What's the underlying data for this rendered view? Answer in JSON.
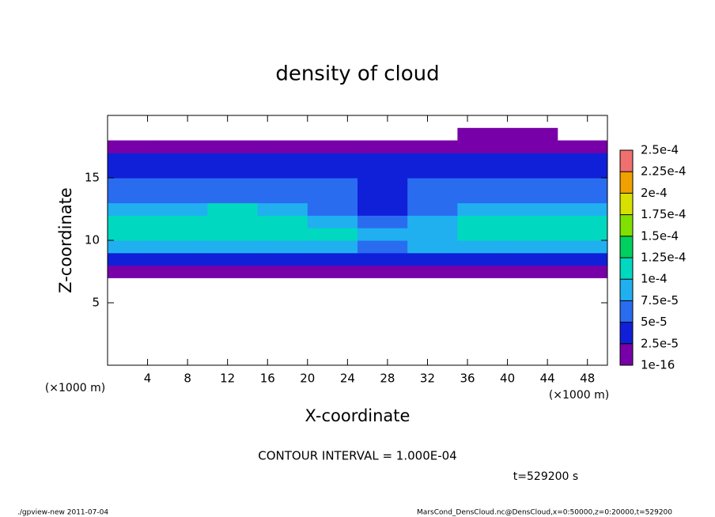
{
  "chart_data": {
    "type": "heatmap",
    "title": "density of cloud",
    "xlabel": "X-coordinate",
    "ylabel": "Z-coordinate",
    "x_unit": "(×1000 m)",
    "y_unit": "(×1000 m)",
    "contour_note": "CONTOUR INTERVAL = 1.000E-04",
    "time_note": "t=529200 s",
    "footer_left": "./gpview-new  2011-07-04",
    "footer_right": "MarsCond_DensCloud.nc@DensCloud,x=0:50000,z=0:20000,t=529200",
    "xlim": [
      0,
      50
    ],
    "ylim": [
      0,
      20
    ],
    "xticks": [
      4,
      8,
      12,
      16,
      20,
      24,
      28,
      32,
      36,
      40,
      44,
      48
    ],
    "yticks": [
      5,
      10,
      15
    ],
    "x_edges": [
      0,
      5,
      10,
      15,
      20,
      25,
      30,
      35,
      40,
      45,
      50
    ],
    "z_edges": [
      7,
      8,
      9,
      10,
      11,
      12,
      13,
      14,
      15,
      16,
      17,
      18,
      19
    ],
    "values": [
      [
        1e-05,
        1e-05,
        1e-05,
        1e-05,
        1e-05,
        1e-05,
        1e-05,
        1e-05,
        1e-05,
        1e-05
      ],
      [
        3e-05,
        3e-05,
        3e-05,
        3e-05,
        3e-05,
        3e-05,
        3e-05,
        3e-05,
        3e-05,
        3e-05
      ],
      [
        8e-05,
        8e-05,
        8e-05,
        8e-05,
        8e-05,
        7e-05,
        8e-05,
        8e-05,
        8e-05,
        8e-05
      ],
      [
        0.00011,
        0.00011,
        0.00011,
        0.00011,
        0.0001,
        8e-05,
        9e-05,
        0.00011,
        0.00011,
        0.00011
      ],
      [
        0.00011,
        0.00012,
        0.00012,
        0.00011,
        9e-05,
        6e-05,
        9e-05,
        0.00011,
        0.00012,
        0.00011
      ],
      [
        8e-05,
        9e-05,
        0.0001,
        9e-05,
        7e-05,
        4e-05,
        7e-05,
        9e-05,
        9e-05,
        8e-05
      ],
      [
        6e-05,
        6e-05,
        7e-05,
        7e-05,
        6e-05,
        4e-05,
        5e-05,
        6e-05,
        6e-05,
        6e-05
      ],
      [
        5e-05,
        5e-05,
        5e-05,
        5e-05,
        5e-05,
        4e-05,
        5e-05,
        5e-05,
        5e-05,
        5e-05
      ],
      [
        4e-05,
        4e-05,
        4e-05,
        4e-05,
        4e-05,
        4e-05,
        4e-05,
        4e-05,
        4e-05,
        4e-05
      ],
      [
        3e-05,
        3e-05,
        3e-05,
        3e-05,
        3e-05,
        3e-05,
        3e-05,
        3e-05,
        3e-05,
        3e-05
      ],
      [
        1e-05,
        1e-05,
        1e-05,
        1e-05,
        1e-05,
        1e-05,
        1e-05,
        1e-05,
        1e-05,
        1e-05
      ],
      [
        null,
        null,
        null,
        null,
        null,
        null,
        null,
        1e-05,
        1e-05,
        null
      ]
    ],
    "levels": [
      {
        "value": 1e-16,
        "label": "1e-16"
      },
      {
        "value": 2.5e-05,
        "label": "2.5e-5"
      },
      {
        "value": 5e-05,
        "label": "5e-5"
      },
      {
        "value": 7.5e-05,
        "label": "7.5e-5"
      },
      {
        "value": 0.0001,
        "label": "1e-4"
      },
      {
        "value": 0.000125,
        "label": "1.25e-4"
      },
      {
        "value": 0.00015,
        "label": "1.5e-4"
      },
      {
        "value": 0.000175,
        "label": "1.75e-4"
      },
      {
        "value": 0.0002,
        "label": "2e-4"
      },
      {
        "value": 0.000225,
        "label": "2.25e-4"
      },
      {
        "value": 0.00025,
        "label": "2.5e-4"
      }
    ],
    "colors": [
      "#7800a8",
      "#1020d8",
      "#2a6cf0",
      "#20b0f0",
      "#00d8c0",
      "#00d060",
      "#80e000",
      "#d8e000",
      "#f0a000",
      "#f07070"
    ]
  }
}
